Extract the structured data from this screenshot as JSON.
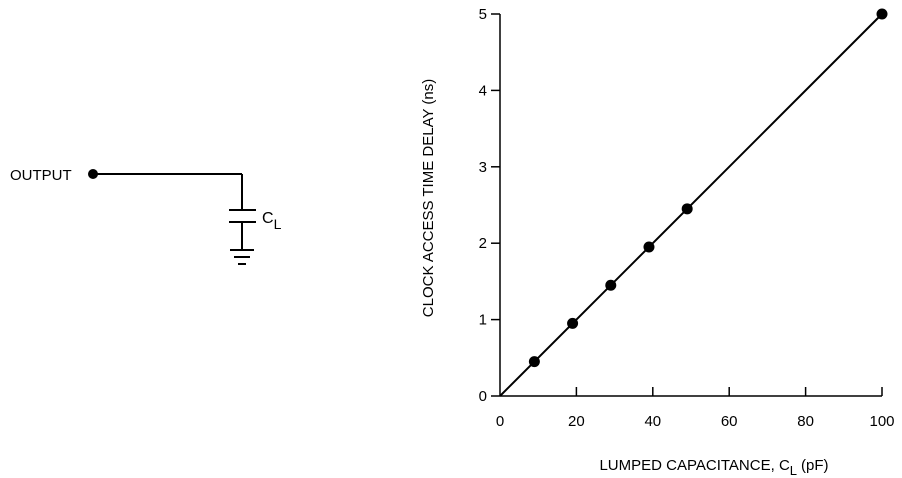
{
  "circuit": {
    "output_label": "OUTPUT",
    "cap_label_main": "C",
    "cap_label_sub": "L"
  },
  "chart_data": {
    "type": "scatter",
    "title": "",
    "xlabel_main": "LUMPED CAPACITANCE, C",
    "xlabel_sub": "L",
    "xlabel_unit": "(pF)",
    "ylabel": "CLOCK ACCESS TIME DELAY (ns)",
    "xlim": [
      0,
      100
    ],
    "ylim": [
      0,
      5
    ],
    "x_ticks": [
      0,
      20,
      40,
      60,
      80,
      100
    ],
    "y_ticks": [
      0,
      1,
      2,
      3,
      4,
      5
    ],
    "grid": false,
    "legend": "none",
    "series": [
      {
        "x": [
          9,
          19,
          29,
          39,
          49,
          100
        ],
        "y": [
          0.45,
          0.95,
          1.45,
          1.95,
          2.45,
          5.0
        ]
      }
    ],
    "trend_line": {
      "x": [
        0,
        100
      ],
      "y": [
        0,
        5
      ]
    }
  }
}
